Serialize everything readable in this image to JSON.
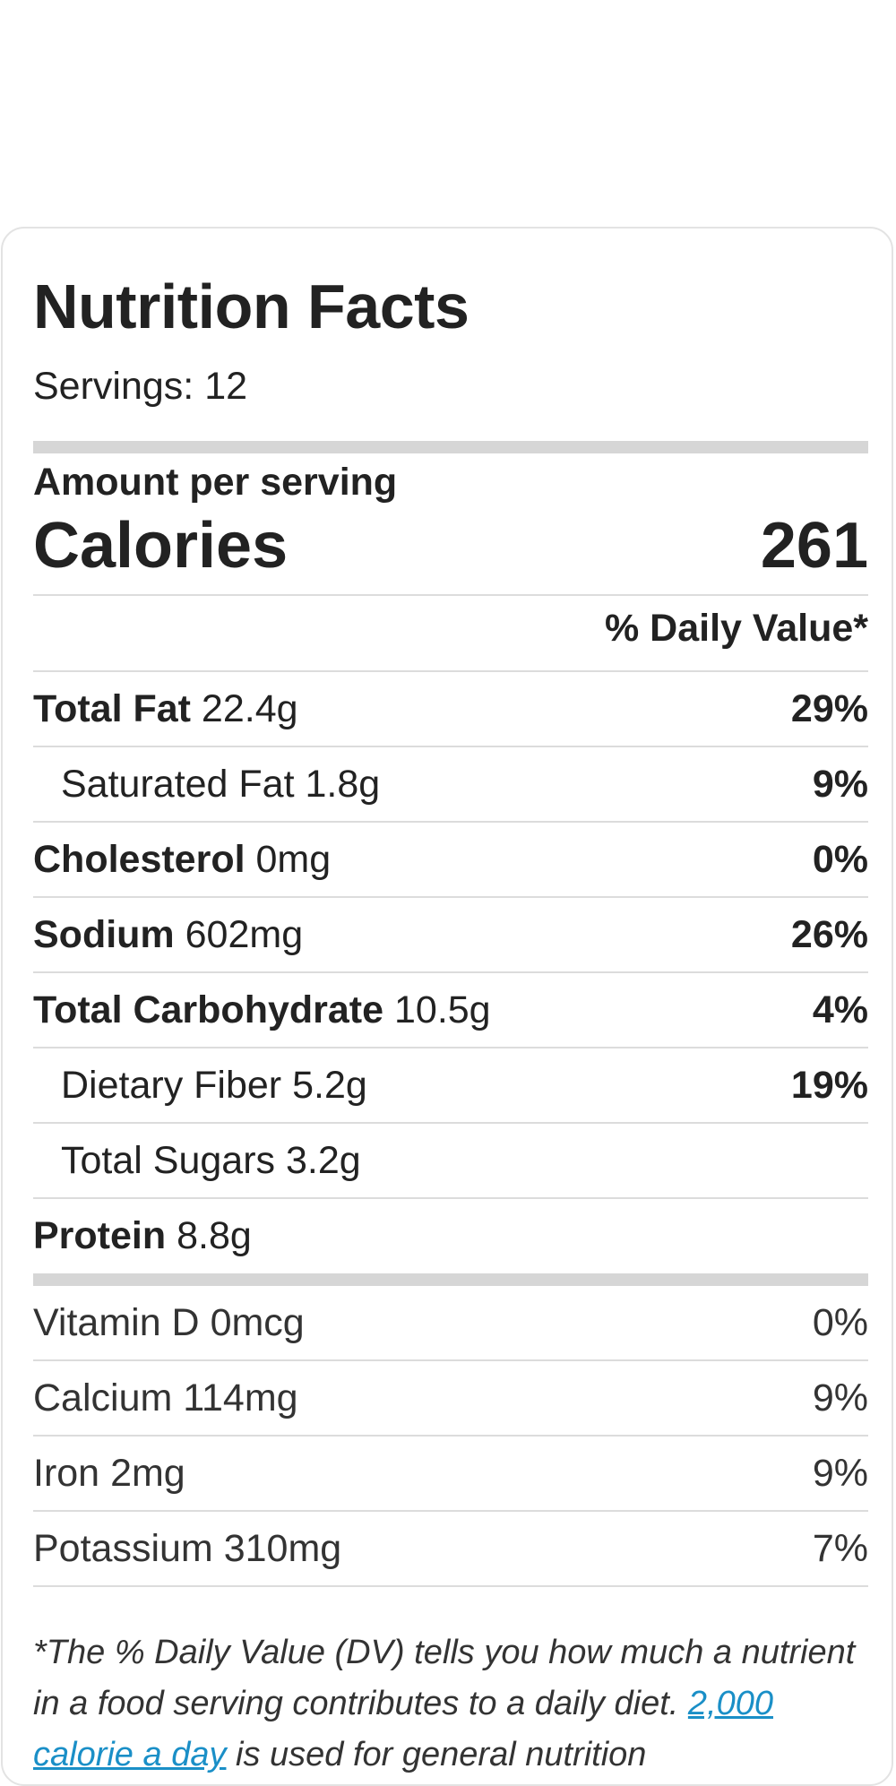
{
  "title": "Nutrition Facts",
  "servings": "Servings: 12",
  "amount_per_serving": "Amount per serving",
  "calories": {
    "label": "Calories",
    "value": "261"
  },
  "daily_value_header": "% Daily Value*",
  "nutrients": [
    {
      "name": "Total Fat",
      "amount": "22.4g",
      "pct": "29%"
    },
    {
      "name": "Saturated Fat",
      "amount": "1.8g",
      "pct": "9%"
    },
    {
      "name": "Cholesterol",
      "amount": "0mg",
      "pct": "0%"
    },
    {
      "name": "Sodium",
      "amount": "602mg",
      "pct": "26%"
    },
    {
      "name": "Total Carbohydrate",
      "amount": "10.5g",
      "pct": "4%"
    },
    {
      "name": "Dietary Fiber",
      "amount": "5.2g",
      "pct": "19%"
    },
    {
      "name": "Total Sugars",
      "amount": "3.2g",
      "pct": ""
    },
    {
      "name": "Protein",
      "amount": "8.8g",
      "pct": ""
    }
  ],
  "vitamins": [
    {
      "name": "Vitamin D",
      "amount": "0mcg",
      "pct": "0%"
    },
    {
      "name": "Calcium",
      "amount": "114mg",
      "pct": "9%"
    },
    {
      "name": "Iron",
      "amount": "2mg",
      "pct": "9%"
    },
    {
      "name": "Potassium",
      "amount": "310mg",
      "pct": "7%"
    }
  ],
  "footnote": {
    "text": "*The % Daily Value (DV) tells you how much a nutrient in a food serving contributes to a daily diet.",
    "link": "2,000 calorie a day",
    "after": "is used for general nutrition"
  },
  "colors": {
    "link": "#1a8fc7",
    "bar": "#d6d6d6",
    "line": "#dcdcdc"
  }
}
